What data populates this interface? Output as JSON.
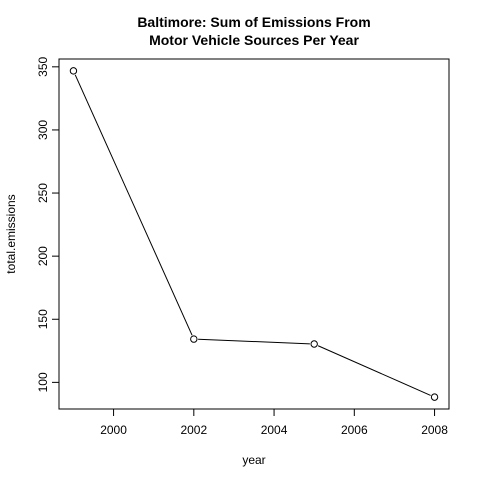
{
  "chart_data": {
    "type": "line",
    "title_lines": [
      "Baltimore: Sum of Emissions From",
      "Motor Vehicle Sources Per Year"
    ],
    "xlabel": "year",
    "ylabel": "total.emissions",
    "x": [
      1999,
      2002,
      2005,
      2008
    ],
    "y": [
      346.8,
      134.3,
      130.4,
      88.3
    ],
    "xlim": [
      1998.64,
      2008.36
    ],
    "ylim": [
      78.9,
      356.2
    ],
    "xticks": [
      2000,
      2002,
      2004,
      2006,
      2008
    ],
    "yticks": [
      100,
      150,
      200,
      250,
      300,
      350
    ],
    "grid": false,
    "legend": "none",
    "colors": {
      "line": "#000000",
      "point_stroke": "#000000",
      "point_fill": "#ffffff"
    }
  }
}
